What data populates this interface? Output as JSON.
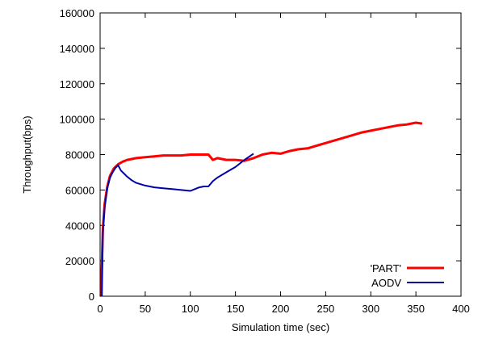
{
  "chart_data": {
    "type": "line",
    "title": "",
    "xlabel": "Simulation time (sec)",
    "ylabel": "Throughput(bps)",
    "xlim": [
      0,
      400
    ],
    "ylim": [
      0,
      160000
    ],
    "x_ticks": [
      0,
      50,
      100,
      150,
      200,
      250,
      300,
      350,
      400
    ],
    "y_ticks": [
      0,
      20000,
      40000,
      60000,
      80000,
      100000,
      120000,
      140000,
      160000
    ],
    "grid": false,
    "legend_position": "bottom-right",
    "series": [
      {
        "name": "'PART'",
        "color": "#ff0000",
        "x": [
          1,
          3,
          5,
          8,
          11,
          15,
          20,
          25,
          30,
          40,
          50,
          60,
          70,
          80,
          90,
          100,
          110,
          120,
          125,
          130,
          140,
          150,
          160,
          170,
          180,
          190,
          200,
          210,
          220,
          230,
          240,
          250,
          260,
          270,
          280,
          290,
          300,
          310,
          320,
          330,
          340,
          350,
          357
        ],
        "y": [
          0,
          38000,
          52000,
          62000,
          68000,
          72000,
          74500,
          76000,
          77000,
          78000,
          78500,
          79000,
          79500,
          79500,
          79500,
          80000,
          80000,
          80000,
          77000,
          78000,
          77000,
          77000,
          76500,
          78000,
          80000,
          81000,
          80500,
          82000,
          83000,
          83500,
          85000,
          86500,
          88000,
          89500,
          91000,
          92500,
          93500,
          94500,
          95500,
          96500,
          97000,
          98000,
          97500
        ]
      },
      {
        "name": "AODV",
        "color": "#0000aa",
        "x": [
          2,
          3,
          5,
          8,
          11,
          14,
          17,
          20,
          23,
          27,
          30,
          35,
          40,
          50,
          60,
          70,
          80,
          90,
          100,
          105,
          110,
          115,
          120,
          125,
          130,
          140,
          150,
          160,
          170
        ],
        "y": [
          0,
          36000,
          50000,
          61000,
          67000,
          70000,
          72500,
          74000,
          71000,
          69000,
          67500,
          65500,
          64000,
          62500,
          61500,
          61000,
          60500,
          60000,
          59500,
          60500,
          61500,
          62000,
          62000,
          65000,
          67000,
          70000,
          73000,
          77000,
          80500
        ]
      }
    ]
  }
}
